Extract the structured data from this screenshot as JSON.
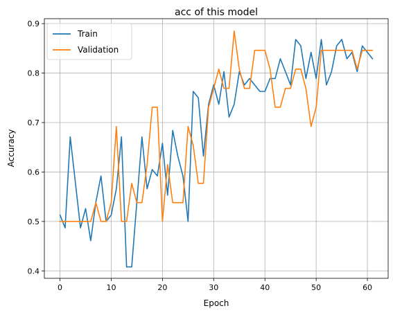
{
  "chart_data": {
    "type": "line",
    "title": "acc of this model",
    "xlabel": "Epoch",
    "ylabel": "Accuracy",
    "xlim": [
      -3.05,
      64.05
    ],
    "ylim": [
      0.385,
      0.91
    ],
    "xticks": [
      0,
      10,
      20,
      30,
      40,
      50,
      60
    ],
    "yticks": [
      0.4,
      0.5,
      0.6,
      0.7,
      0.8,
      0.9
    ],
    "grid": true,
    "legend_position": "top-left",
    "x": [
      0,
      1,
      2,
      3,
      4,
      5,
      6,
      7,
      8,
      9,
      10,
      11,
      12,
      13,
      14,
      15,
      16,
      17,
      18,
      19,
      20,
      21,
      22,
      23,
      24,
      25,
      26,
      27,
      28,
      29,
      30,
      31,
      32,
      33,
      34,
      35,
      36,
      37,
      38,
      39,
      40,
      41,
      42,
      43,
      44,
      45,
      46,
      47,
      48,
      49,
      50,
      51,
      52,
      53,
      54,
      55,
      56,
      57,
      58,
      59,
      60,
      61
    ],
    "series": [
      {
        "name": "Train",
        "color": "#1f77b4",
        "values": [
          0.513,
          0.487,
          0.671,
          0.579,
          0.487,
          0.526,
          0.461,
          0.539,
          0.592,
          0.5,
          0.513,
          0.566,
          0.671,
          0.408,
          0.408,
          0.539,
          0.671,
          0.566,
          0.605,
          0.592,
          0.658,
          0.553,
          0.684,
          0.632,
          0.592,
          0.5,
          0.763,
          0.75,
          0.632,
          0.737,
          0.776,
          0.737,
          0.803,
          0.711,
          0.737,
          0.803,
          0.776,
          0.789,
          0.776,
          0.763,
          0.763,
          0.789,
          0.789,
          0.829,
          0.803,
          0.776,
          0.868,
          0.855,
          0.789,
          0.842,
          0.789,
          0.868,
          0.776,
          0.803,
          0.855,
          0.868,
          0.829,
          0.842,
          0.803,
          0.855,
          0.842,
          0.829
        ]
      },
      {
        "name": "Validation",
        "color": "#ff7f0e",
        "values": [
          0.5,
          0.5,
          0.5,
          0.5,
          0.5,
          0.5,
          0.5,
          0.538,
          0.5,
          0.5,
          0.538,
          0.692,
          0.5,
          0.5,
          0.577,
          0.538,
          0.538,
          0.615,
          0.731,
          0.731,
          0.5,
          0.615,
          0.538,
          0.538,
          0.538,
          0.692,
          0.654,
          0.577,
          0.577,
          0.731,
          0.769,
          0.808,
          0.769,
          0.769,
          0.885,
          0.808,
          0.769,
          0.769,
          0.846,
          0.846,
          0.846,
          0.808,
          0.731,
          0.731,
          0.769,
          0.769,
          0.808,
          0.808,
          0.769,
          0.692,
          0.731,
          0.846,
          0.846,
          0.846,
          0.846,
          0.846,
          0.846,
          0.846,
          0.808,
          0.846,
          0.846,
          0.846
        ]
      }
    ]
  }
}
